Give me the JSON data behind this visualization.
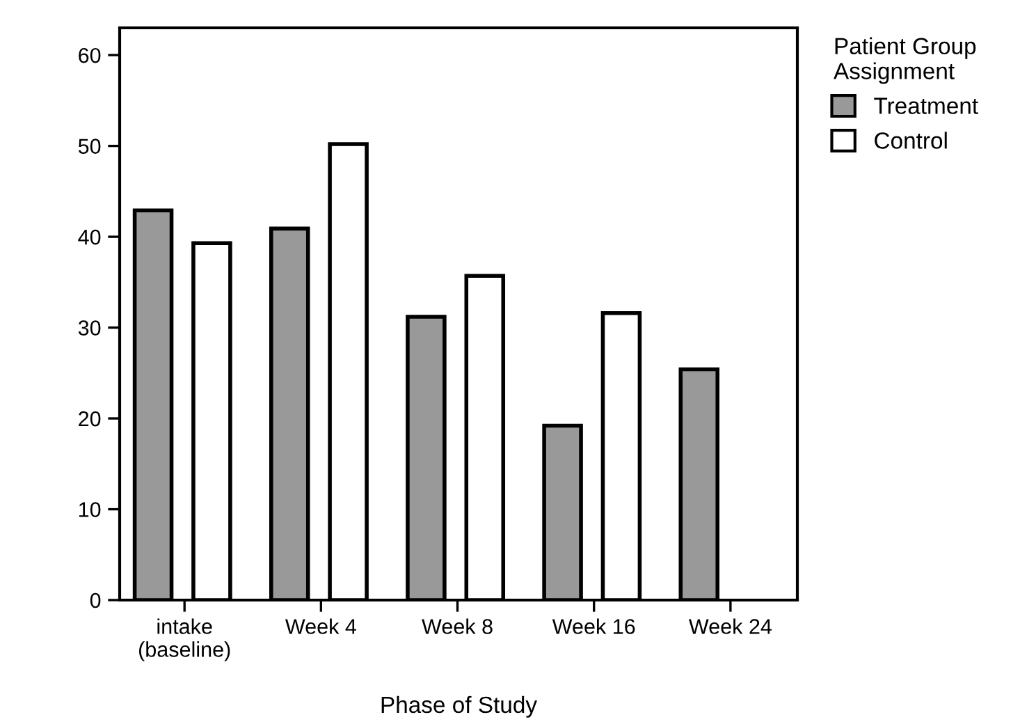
{
  "chart_data": {
    "type": "bar",
    "xlabel": "Phase of Study",
    "legend_title": "Patient Group\nAssignment",
    "legend": "top right",
    "categories": [
      "intake\n(baseline)",
      "Week 4",
      "Week 8",
      "Week 16",
      "Week 24"
    ],
    "series": [
      {
        "name": "Treatment",
        "color": "#999999",
        "values": [
          42.9,
          40.9,
          31.2,
          19.2,
          25.4
        ]
      },
      {
        "name": "Control",
        "color": "#ffffff",
        "values": [
          39.3,
          50.2,
          35.7,
          31.6,
          null
        ]
      }
    ],
    "ylim": [
      0,
      63
    ],
    "yticks": [
      0,
      10,
      20,
      30,
      40,
      50,
      60
    ],
    "grid": false
  }
}
